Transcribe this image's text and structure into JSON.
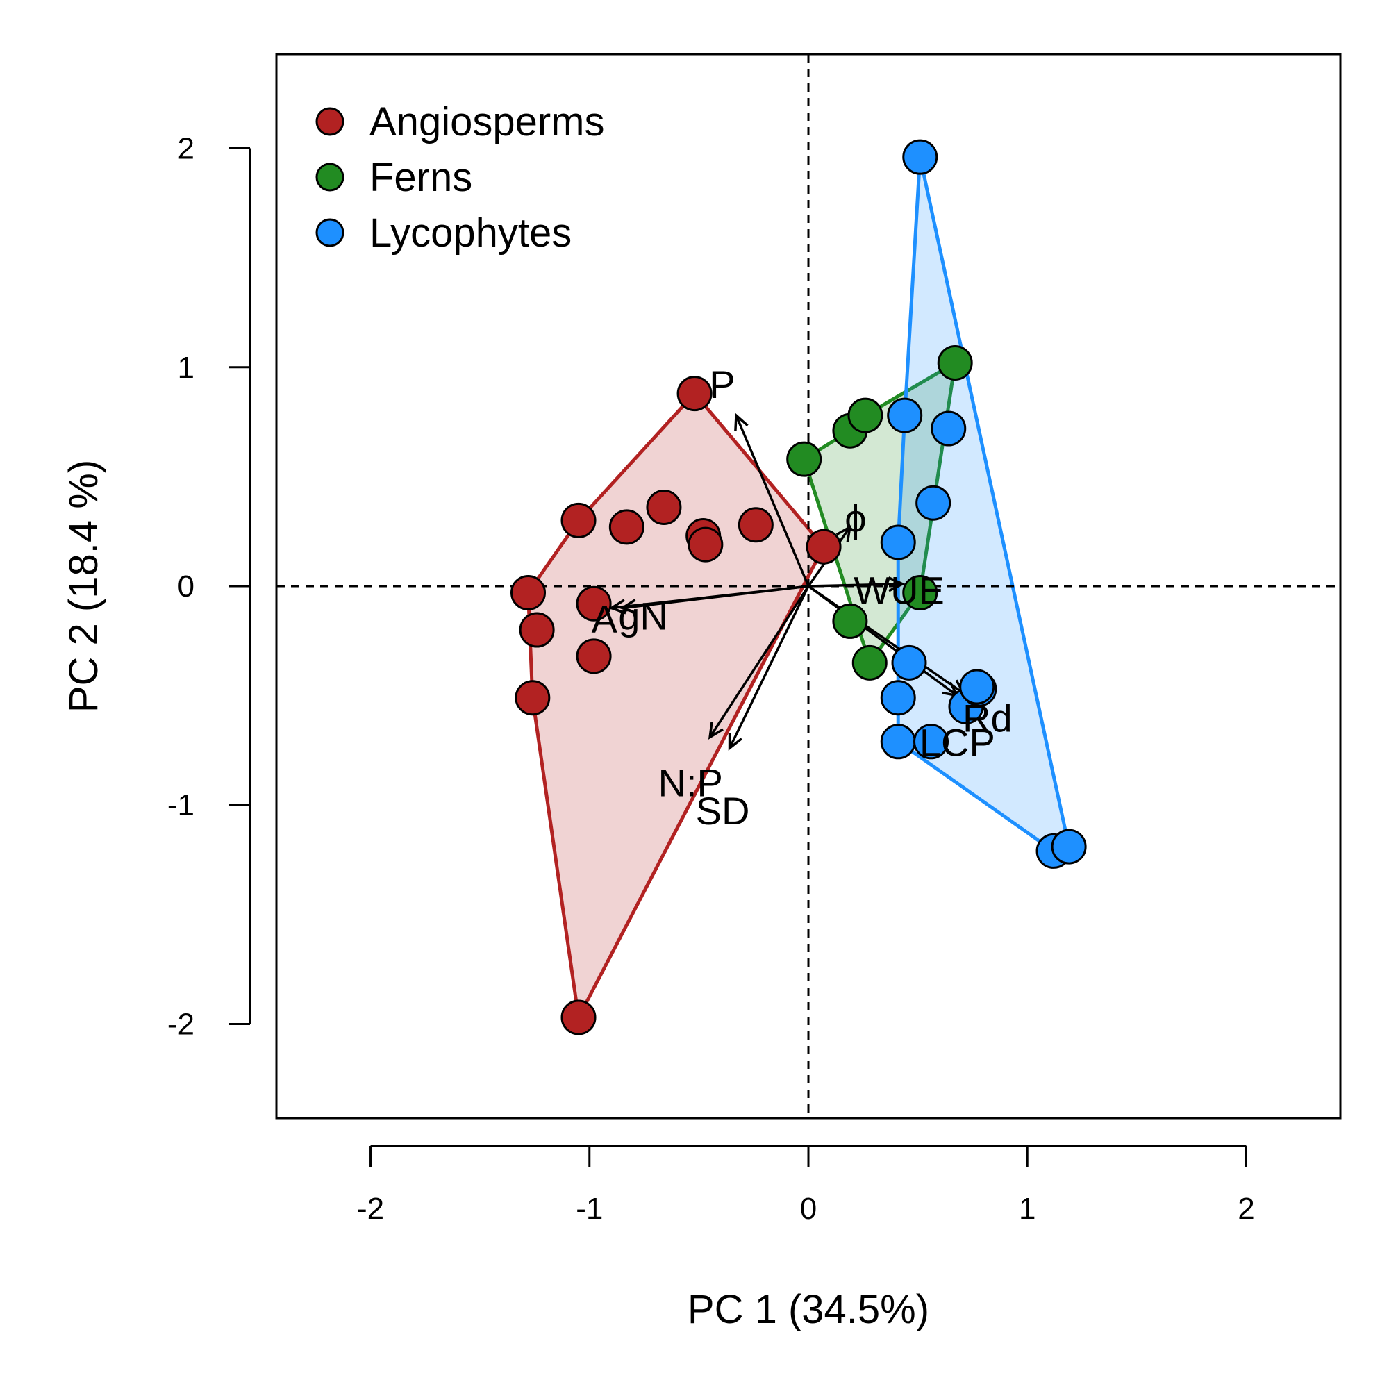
{
  "chart_data": {
    "type": "scatter",
    "title": "",
    "xlabel": "PC 1 (34.5%)",
    "ylabel": "PC 2 (18.4 %)",
    "xlim": [
      -2.43,
      2.43
    ],
    "ylim": [
      -2.43,
      2.43
    ],
    "xticks": [
      -2,
      -1,
      0,
      1,
      2
    ],
    "yticks": [
      -2,
      -1,
      0,
      1,
      2
    ],
    "grid": false,
    "reference_lines": {
      "x": 0,
      "y": 0,
      "style": "dashed"
    },
    "legend_position": "top-left",
    "series": [
      {
        "name": "Angiosperms",
        "color": "#b22222",
        "fill": "rgba(178,34,34,0.2)",
        "points": [
          [
            -0.52,
            0.88
          ],
          [
            -1.05,
            0.3
          ],
          [
            -0.83,
            0.27
          ],
          [
            -0.66,
            0.36
          ],
          [
            -0.48,
            0.23
          ],
          [
            -0.47,
            0.19
          ],
          [
            -0.24,
            0.28
          ],
          [
            0.07,
            0.18
          ],
          [
            -1.28,
            -0.03
          ],
          [
            -0.98,
            -0.08
          ],
          [
            -1.24,
            -0.2
          ],
          [
            -0.98,
            -0.32
          ],
          [
            -1.26,
            -0.51
          ],
          [
            -1.05,
            -1.97
          ]
        ],
        "hull": [
          [
            -0.52,
            0.88
          ],
          [
            -1.05,
            0.3
          ],
          [
            -1.28,
            -0.03
          ],
          [
            -1.26,
            -0.51
          ],
          [
            -1.05,
            -1.97
          ],
          [
            0.07,
            0.18
          ]
        ]
      },
      {
        "name": "Ferns",
        "color": "#228b22",
        "fill": "rgba(34,139,34,0.2)",
        "points": [
          [
            -0.02,
            0.58
          ],
          [
            0.19,
            0.71
          ],
          [
            0.26,
            0.78
          ],
          [
            0.67,
            1.02
          ],
          [
            0.51,
            -0.03
          ],
          [
            0.19,
            -0.16
          ],
          [
            0.28,
            -0.35
          ]
        ],
        "hull": [
          [
            -0.02,
            0.58
          ],
          [
            0.19,
            0.71
          ],
          [
            0.26,
            0.78
          ],
          [
            0.67,
            1.02
          ],
          [
            0.51,
            -0.03
          ],
          [
            0.28,
            -0.35
          ]
        ]
      },
      {
        "name": "Lycophytes",
        "color": "#1e90ff",
        "fill": "rgba(30,144,255,0.2)",
        "points": [
          [
            0.51,
            1.96
          ],
          [
            0.44,
            0.78
          ],
          [
            0.64,
            0.72
          ],
          [
            0.57,
            0.38
          ],
          [
            0.41,
            0.2
          ],
          [
            0.46,
            -0.35
          ],
          [
            0.41,
            -0.51
          ],
          [
            0.41,
            -0.71
          ],
          [
            0.56,
            -0.71
          ],
          [
            0.72,
            -0.55
          ],
          [
            0.78,
            -0.47
          ],
          [
            0.77,
            -0.46
          ],
          [
            1.12,
            -1.21
          ],
          [
            1.19,
            -1.19
          ]
        ],
        "hull": [
          [
            0.51,
            1.96
          ],
          [
            0.44,
            0.78
          ],
          [
            0.41,
            0.2
          ],
          [
            0.41,
            -0.71
          ],
          [
            1.12,
            -1.21
          ],
          [
            1.19,
            -1.19
          ]
        ]
      }
    ],
    "loadings": [
      {
        "label": "P",
        "x": -0.33,
        "y": 0.78
      },
      {
        "label": "ϕ",
        "x": 0.19,
        "y": 0.27
      },
      {
        "label": "WUE",
        "x": 0.43,
        "y": 0.01
      },
      {
        "label": "A",
        "x": -0.9,
        "y": -0.1
      },
      {
        "label": "gN",
        "x": -0.85,
        "y": -0.1
      },
      {
        "label": "N:P",
        "x": -0.45,
        "y": -0.69
      },
      {
        "label": "SD",
        "x": -0.36,
        "y": -0.74
      },
      {
        "label": "LCP",
        "x": 0.68,
        "y": -0.5
      },
      {
        "label": "Rd",
        "x": 0.71,
        "y": -0.49
      }
    ]
  }
}
